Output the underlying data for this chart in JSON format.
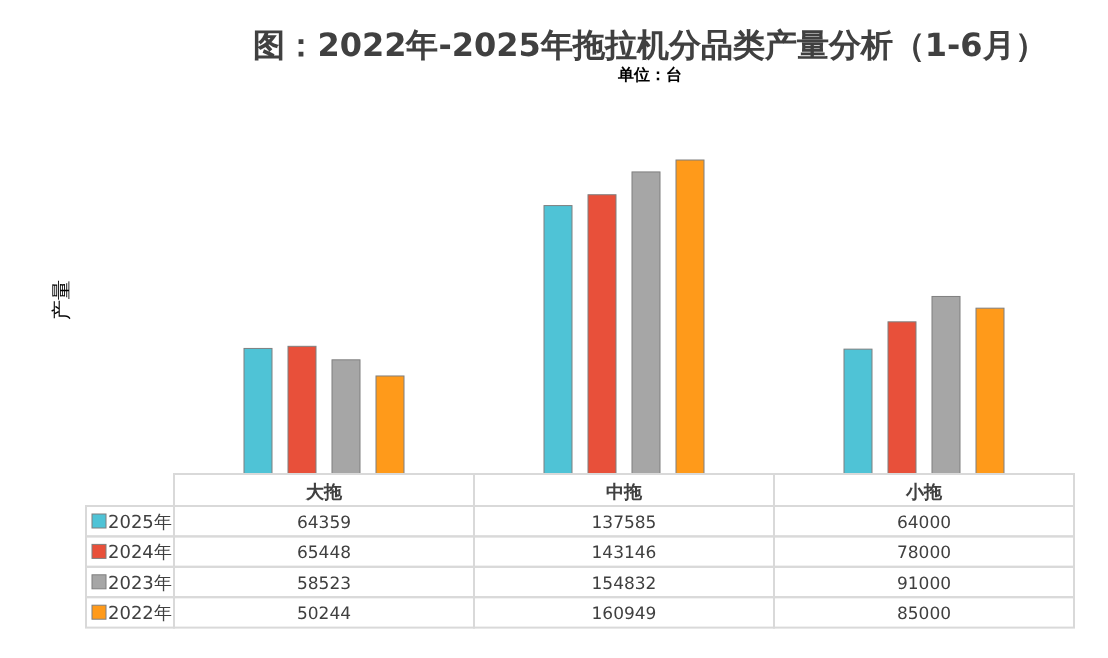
{
  "chart_data": {
    "type": "bar",
    "title": "图：2022年-2025年拖拉机分品类产量分析（1-6月）",
    "subtitle": "单位：台",
    "ylabel": "产量",
    "categories": [
      "大拖",
      "中拖",
      "小拖"
    ],
    "data_labels": true,
    "legend": "bottom",
    "series": [
      {
        "name": "2025年",
        "color": "#4fc3d6",
        "values": [
          64359,
          137585,
          64000
        ]
      },
      {
        "name": "2024年",
        "color": "#e8503a",
        "values": [
          65448,
          143146,
          78000
        ]
      },
      {
        "name": "2023年",
        "color": "#a6a6a6",
        "values": [
          58523,
          154832,
          91000
        ]
      },
      {
        "name": "2022年",
        "color": "#ff9a1a",
        "values": [
          50244,
          160949,
          85000
        ]
      }
    ]
  }
}
